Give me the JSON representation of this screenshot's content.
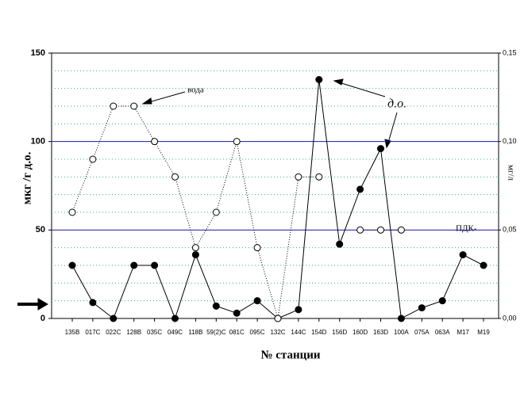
{
  "chart_data": {
    "type": "line",
    "y_label": "мкг /г д.о.",
    "y2_label": "мг/л",
    "x_label": "№ станции",
    "annotations": [
      "вода",
      "д.о.",
      "ПДК-"
    ],
    "categories": [
      "135B",
      "017C",
      "022C",
      "128B",
      "035C",
      "049C",
      "118B",
      "59(2)C",
      "081C",
      "095C",
      "132C",
      "144C",
      "154D",
      "156D",
      "160D",
      "163D",
      "100A",
      "075A",
      "063A",
      "M17",
      "M19"
    ],
    "series": [
      {
        "name": "д.о.",
        "color": "#000000",
        "marker": "filled",
        "line": "solid",
        "values": [
          30,
          9,
          0,
          30,
          30,
          0,
          36,
          7,
          3,
          10,
          0,
          5,
          135,
          42,
          73,
          96,
          0,
          6,
          10,
          36,
          30
        ]
      },
      {
        "name": "вода",
        "color": "#000000",
        "marker": "open",
        "line": "dotted",
        "axis": "y2",
        "values": [
          0.06,
          0.09,
          0.12,
          0.12,
          0.1,
          0.08,
          0.04,
          0.06,
          0.1,
          0.04,
          0.0,
          0.08,
          0.08,
          null,
          0.05,
          0.05,
          0.05,
          null,
          null,
          null,
          null
        ]
      }
    ],
    "ylim": [
      0,
      150
    ],
    "yticks": [
      0,
      50,
      100,
      150
    ],
    "y2lim": [
      0,
      0.15
    ],
    "y2ticks": [
      {
        "value": 0,
        "label": "0,00"
      },
      {
        "value": 0.05,
        "label": "0,05"
      },
      {
        "value": 0.1,
        "label": "0,10"
      },
      {
        "value": 0.15,
        "label": "0,15"
      }
    ],
    "major_grid_color": "#1a1aa0",
    "minor_grid_color": "#3cb371",
    "minor_grid": [
      10,
      20,
      30,
      40,
      60,
      70,
      80,
      90,
      110,
      120,
      130,
      140
    ]
  }
}
